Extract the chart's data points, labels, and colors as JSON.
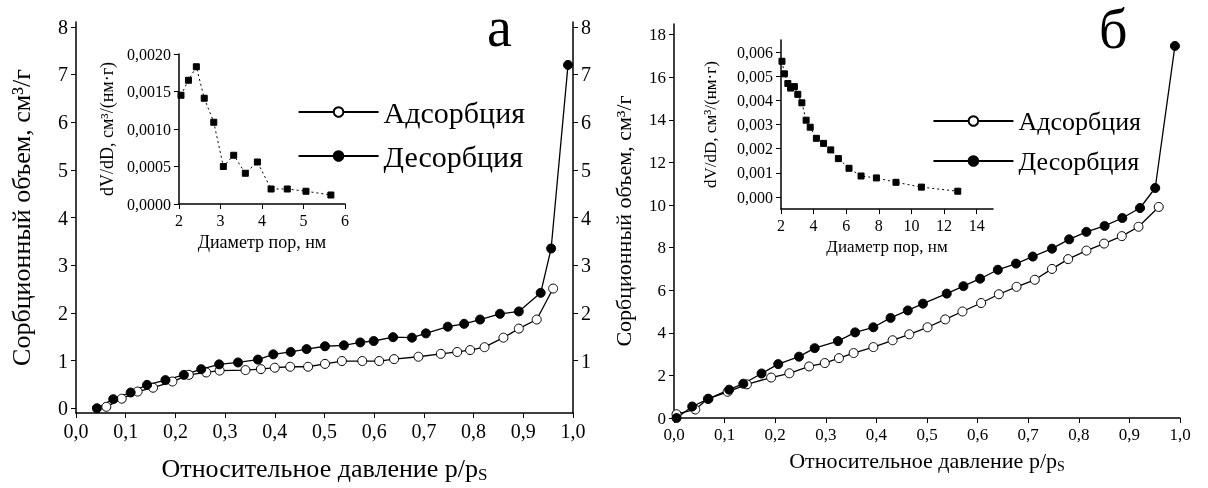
{
  "chart_data": [
    {
      "type": "line",
      "title": "а",
      "xlabel": "Относительное давление p/p$_{S}$",
      "ylabel": "Сорбционный объем, см³/г",
      "marker": "circle",
      "line_style": "solid",
      "legend": "top right",
      "xlim": [
        0,
        1
      ],
      "xticks": [
        {
          "value": 0,
          "label": "0,0"
        },
        {
          "value": 0.1,
          "label": "0,1"
        },
        {
          "value": 0.2,
          "label": "0,2"
        },
        {
          "value": 0.3,
          "label": "0,3"
        },
        {
          "value": 0.4,
          "label": "0,4"
        },
        {
          "value": 0.5,
          "label": "0,5"
        },
        {
          "value": 0.6,
          "label": "0,6"
        },
        {
          "value": 0.7,
          "label": "0,7"
        },
        {
          "value": 0.8,
          "label": "0,8"
        },
        {
          "value": 0.9,
          "label": "0,9"
        },
        {
          "value": 1,
          "label": "1,0"
        }
      ],
      "ylim": [
        -0.1,
        8.1
      ],
      "yticks": [
        0,
        1,
        2,
        3,
        4,
        5,
        6,
        7,
        8
      ],
      "y2lim": [
        -0.1,
        8.1
      ],
      "y2ticks": [
        1,
        2,
        3,
        4,
        5,
        6,
        7,
        8
      ],
      "series": [
        {
          "name": "Адсорбция",
          "color": "#000000",
          "x": [
            0.061,
            0.092,
            0.124,
            0.155,
            0.194,
            0.227,
            0.262,
            0.289,
            0.341,
            0.372,
            0.4,
            0.431,
            0.467,
            0.501,
            0.535,
            0.576,
            0.61,
            0.64,
            0.689,
            0.734,
            0.767,
            0.793,
            0.822,
            0.86,
            0.891,
            0.927,
            0.96
          ],
          "values": [
            0.03,
            0.2,
            0.35,
            0.43,
            0.56,
            0.7,
            0.75,
            0.79,
            0.8,
            0.82,
            0.85,
            0.87,
            0.87,
            0.93,
            0.99,
            0.99,
            0.99,
            1.03,
            1.08,
            1.14,
            1.18,
            1.22,
            1.28,
            1.48,
            1.67,
            1.86,
            2.51
          ]
        },
        {
          "name": "Десорбция",
          "color": "#000000",
          "x": [
            0.042,
            0.075,
            0.11,
            0.143,
            0.18,
            0.217,
            0.252,
            0.288,
            0.326,
            0.366,
            0.397,
            0.432,
            0.464,
            0.501,
            0.539,
            0.572,
            0.599,
            0.638,
            0.676,
            0.704,
            0.748,
            0.781,
            0.813,
            0.853,
            0.891,
            0.935,
            0.956,
            0.99
          ],
          "values": [
            0.0,
            0.19,
            0.33,
            0.49,
            0.59,
            0.7,
            0.82,
            0.92,
            0.96,
            1.02,
            1.13,
            1.18,
            1.24,
            1.3,
            1.32,
            1.38,
            1.41,
            1.49,
            1.48,
            1.57,
            1.71,
            1.77,
            1.86,
            1.98,
            2.03,
            2.42,
            3.35,
            7.2
          ]
        }
      ]
    },
    {
      "type": "line",
      "xlabel": "Диаметр пор, нм",
      "ylabel": "dV/dD, см³/(нм·г)",
      "marker": "square",
      "line_style": "dotted",
      "xlim": [
        2,
        6
      ],
      "xticks": [
        2,
        3,
        4,
        5,
        6
      ],
      "ylim": [
        0,
        0.002
      ],
      "yticks": [
        {
          "value": 0,
          "label": "0,0000"
        },
        {
          "value": 0.0005,
          "label": "0,0005"
        },
        {
          "value": 0.001,
          "label": "0,0010"
        },
        {
          "value": 0.0015,
          "label": "0,0015"
        },
        {
          "value": 0.002,
          "label": "0,0020"
        }
      ],
      "series": [
        {
          "color": "#000000",
          "x": [
            2.05,
            2.23,
            2.42,
            2.61,
            2.84,
            3.07,
            3.32,
            3.6,
            3.89,
            4.22,
            4.61,
            5.06,
            5.66
          ],
          "values": [
            0.00145,
            0.00165,
            0.00183,
            0.00141,
            0.00109,
            0.0005,
            0.00065,
            0.00041,
            0.00056,
            0.0002,
            0.0002,
            0.00017,
            0.00012
          ]
        }
      ]
    },
    {
      "type": "line",
      "title": "б",
      "xlabel": "Относительное давление p/p$_{S}$",
      "ylabel": "Сорбционный объем, см³/г",
      "marker": "circle",
      "line_style": "solid",
      "legend": "top right",
      "xlim": [
        0,
        1
      ],
      "xticks": [
        {
          "value": 0,
          "label": "0,0"
        },
        {
          "value": 0.1,
          "label": "0,1"
        },
        {
          "value": 0.2,
          "label": "0,2"
        },
        {
          "value": 0.3,
          "label": "0,3"
        },
        {
          "value": 0.4,
          "label": "0,4"
        },
        {
          "value": 0.5,
          "label": "0,5"
        },
        {
          "value": 0.6,
          "label": "0,6"
        },
        {
          "value": 0.7,
          "label": "0,7"
        },
        {
          "value": 0.8,
          "label": "0,8"
        },
        {
          "value": 0.9,
          "label": "0,9"
        },
        {
          "value": 1,
          "label": "1,0"
        }
      ],
      "ylim": [
        0,
        18.5
      ],
      "yticks": [
        0,
        2,
        4,
        6,
        8,
        10,
        12,
        14,
        16,
        18
      ],
      "series": [
        {
          "name": "Адсорбция",
          "color": "#000000",
          "x": [
            0.005,
            0.042,
            0.067,
            0.106,
            0.144,
            0.192,
            0.228,
            0.267,
            0.298,
            0.326,
            0.355,
            0.394,
            0.432,
            0.465,
            0.501,
            0.536,
            0.57,
            0.607,
            0.642,
            0.677,
            0.713,
            0.747,
            0.779,
            0.815,
            0.85,
            0.885,
            0.918,
            0.958
          ],
          "values": [
            0.18,
            0.4,
            0.9,
            1.23,
            1.58,
            1.9,
            2.1,
            2.42,
            2.58,
            2.81,
            3.05,
            3.33,
            3.65,
            3.93,
            4.26,
            4.63,
            5.0,
            5.4,
            5.81,
            6.16,
            6.49,
            7.0,
            7.46,
            7.86,
            8.19,
            8.54,
            8.98,
            9.91
          ]
        },
        {
          "name": "Десорбция",
          "color": "#000000",
          "x": [
            0.005,
            0.036,
            0.068,
            0.109,
            0.137,
            0.173,
            0.206,
            0.247,
            0.278,
            0.324,
            0.358,
            0.394,
            0.428,
            0.462,
            0.492,
            0.539,
            0.572,
            0.605,
            0.64,
            0.676,
            0.709,
            0.747,
            0.781,
            0.815,
            0.851,
            0.886,
            0.921,
            0.951,
            0.99
          ],
          "values": [
            0.0,
            0.54,
            0.9,
            1.33,
            1.61,
            2.09,
            2.53,
            2.88,
            3.28,
            3.61,
            4.02,
            4.26,
            4.7,
            5.05,
            5.37,
            5.84,
            6.19,
            6.54,
            6.96,
            7.25,
            7.58,
            7.95,
            8.39,
            8.74,
            9.02,
            9.39,
            9.86,
            10.8,
            17.47
          ]
        }
      ]
    },
    {
      "type": "line",
      "xlabel": "Диаметр пор, нм",
      "ylabel": "dV/dD, см³/(нм·г)",
      "marker": "square",
      "line_style": "dotted",
      "xlim": [
        2,
        15
      ],
      "xticks": [
        2,
        4,
        6,
        8,
        10,
        12,
        14
      ],
      "ylim": [
        -0.0005,
        0.0065
      ],
      "yticks": [
        {
          "value": 0,
          "label": "0,000"
        },
        {
          "value": 0.001,
          "label": "0,001"
        },
        {
          "value": 0.002,
          "label": "0,002"
        },
        {
          "value": 0.003,
          "label": "0,003"
        },
        {
          "value": 0.004,
          "label": "0,004"
        },
        {
          "value": 0.005,
          "label": "0,005"
        },
        {
          "value": 0.006,
          "label": "0,006"
        }
      ],
      "series": [
        {
          "color": "#000000",
          "x": [
            2.06,
            2.21,
            2.42,
            2.59,
            2.82,
            3.03,
            3.28,
            3.54,
            3.79,
            4.17,
            4.61,
            5.05,
            5.52,
            6.17,
            6.91,
            7.85,
            9.05,
            10.61,
            12.84
          ],
          "values": [
            0.00562,
            0.0051,
            0.0047,
            0.00451,
            0.00457,
            0.00425,
            0.0039,
            0.00318,
            0.00289,
            0.00243,
            0.00222,
            0.00195,
            0.00159,
            0.00119,
            0.00087,
            0.00079,
            0.00061,
            0.00041,
            0.00024
          ]
        }
      ]
    }
  ]
}
